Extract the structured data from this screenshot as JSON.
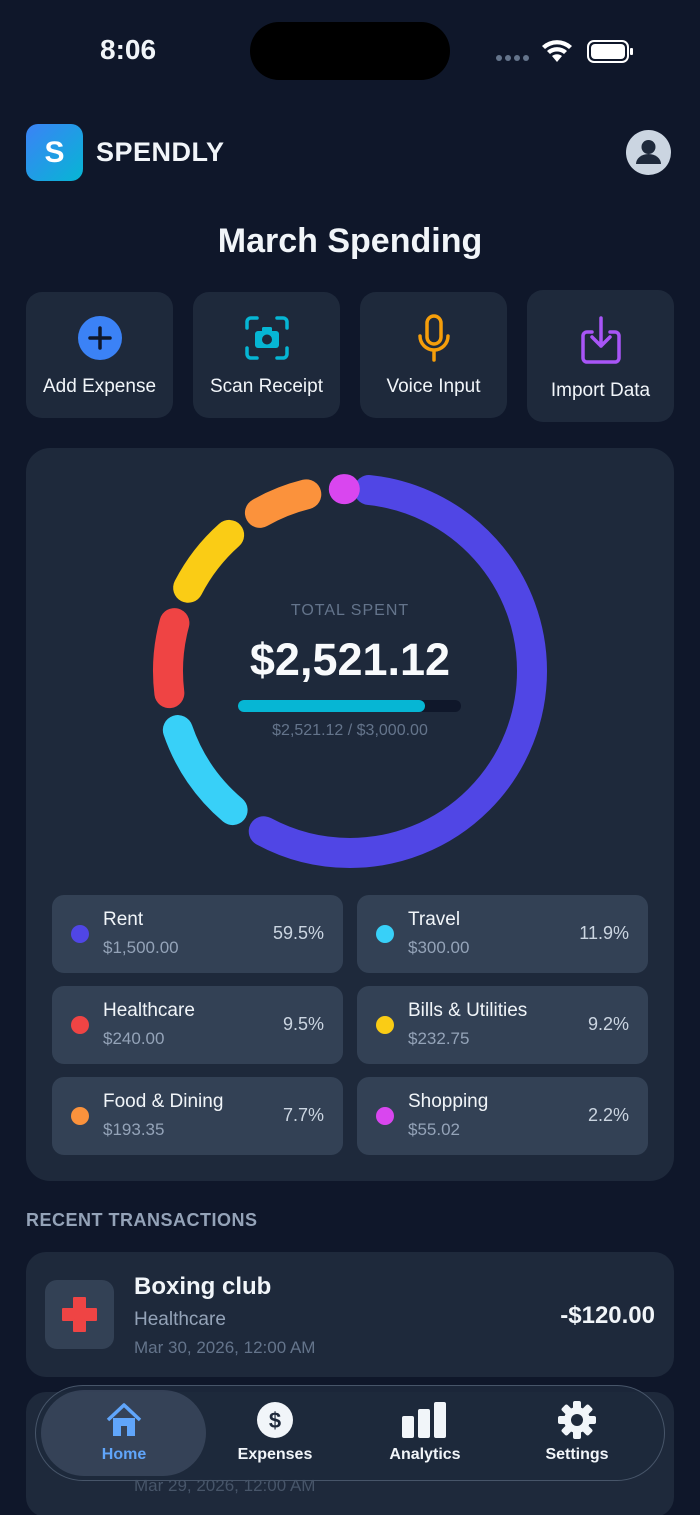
{
  "status_bar": {
    "time": "8:06"
  },
  "header": {
    "logo": "S",
    "app_name": "SPENDLY"
  },
  "title": "March Spending",
  "actions": [
    "Add Expense",
    "Scan Receipt",
    "Voice Input",
    "Import Data"
  ],
  "summary": {
    "label": "TOTAL SPENT",
    "total": "$2,521.12",
    "budget": {
      "spent": 2521.12,
      "limit": 3000,
      "label": "$2,521.12 / $3,000.00"
    }
  },
  "categories": [
    {
      "name": "Rent",
      "amount": "$1,500.00",
      "share": {
        "value": 59.5,
        "label": "59.5%"
      },
      "color": "#5046e5"
    },
    {
      "name": "Travel",
      "amount": "$300.00",
      "share": {
        "value": 11.9,
        "label": "11.9%"
      },
      "color": "#38d0f8"
    },
    {
      "name": "Healthcare",
      "amount": "$240.00",
      "share": {
        "value": 9.5,
        "label": "9.5%"
      },
      "color": "#ef4444"
    },
    {
      "name": "Bills & Utilities",
      "amount": "$232.75",
      "share": {
        "value": 9.2,
        "label": "9.2%"
      },
      "color": "#facc15"
    },
    {
      "name": "Food & Dining",
      "amount": "$193.35",
      "share": {
        "value": 7.7,
        "label": "7.7%"
      },
      "color": "#fb923c"
    },
    {
      "name": "Shopping",
      "amount": "$55.02",
      "share": {
        "value": 2.2,
        "label": "2.2%"
      },
      "color": "#d946ef"
    }
  ],
  "recent": {
    "heading": "RECENT TRANSACTIONS",
    "transactions": [
      {
        "title": "Boxing club",
        "category": "Healthcare",
        "date": "Mar 30, 2026, 12:00 AM",
        "amount": "-$120.00"
      },
      {
        "date": "Mar 29, 2026, 12:00 AM"
      }
    ]
  },
  "tabs": [
    "Home",
    "Expenses",
    "Analytics",
    "Settings"
  ]
}
